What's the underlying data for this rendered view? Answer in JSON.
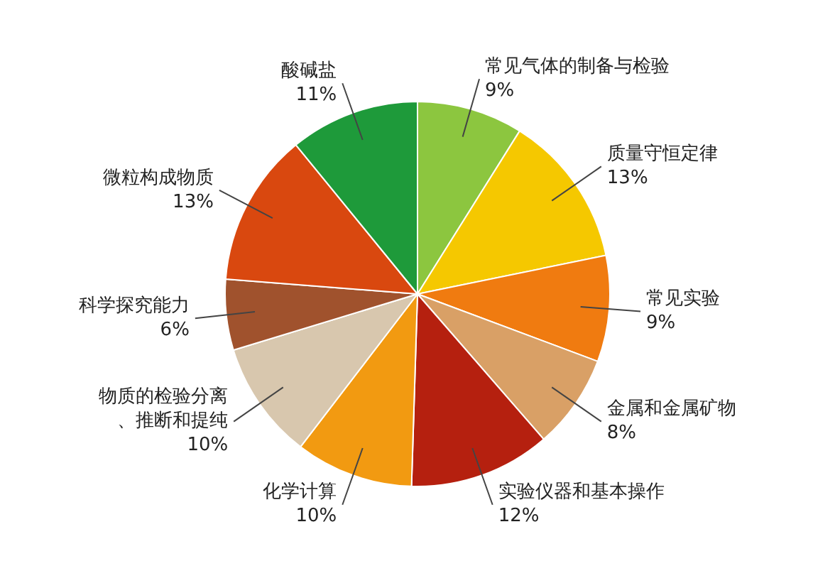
{
  "chart_data": {
    "type": "pie",
    "categories": [
      "常见气体的制备与检验",
      "质量守恒定律",
      "常见实验",
      "金属和金属矿物",
      "实验仪器和基本操作",
      "化学计算",
      "物质的检验分离、推断和提纯",
      "科学探究能力",
      "微粒构成物质",
      "酸碱盐"
    ],
    "values": [
      9,
      13,
      9,
      8,
      12,
      10,
      10,
      6,
      13,
      11
    ],
    "colors": [
      "#8cc63f",
      "#f5c800",
      "#f07b10",
      "#d9a066",
      "#b5200f",
      "#f29a11",
      "#d8c7ae",
      "#a0522d",
      "#d9480f",
      "#1e9a3a"
    ],
    "value_labels": [
      "9%",
      "13%",
      "9%",
      "8%",
      "12%",
      "10%",
      "10%",
      "6%",
      "13%",
      "11%"
    ],
    "legend": false
  }
}
